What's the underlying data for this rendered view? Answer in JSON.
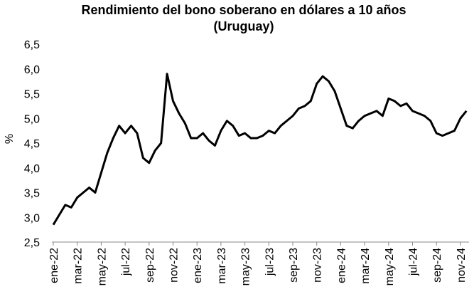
{
  "chart_data": {
    "type": "line",
    "title": "Rendimiento del bono soberano en dólares a 10 años",
    "subtitle": "(Uruguay)",
    "y_label": "%",
    "categories": [
      "ene-22",
      null,
      null,
      null,
      "mar-22",
      null,
      null,
      null,
      "may-22",
      null,
      null,
      null,
      "jul-22",
      null,
      null,
      null,
      "sep-22",
      null,
      null,
      null,
      "nov-22",
      null,
      null,
      null,
      "ene-23",
      null,
      null,
      null,
      "mar-23",
      null,
      null,
      null,
      "may-23",
      null,
      null,
      null,
      "jul-23",
      null,
      null,
      null,
      "sep-23",
      null,
      null,
      null,
      "nov-23",
      null,
      null,
      null,
      "ene-24",
      null,
      null,
      null,
      "mar-24",
      null,
      null,
      null,
      "may-24",
      null,
      null,
      null,
      "jul-24",
      null,
      null,
      null,
      "sep-24",
      null,
      null,
      null,
      "nov-24",
      null
    ],
    "series": [
      {
        "name": "Rendimiento",
        "color": "#000000",
        "values": [
          2.85,
          3.05,
          3.25,
          3.2,
          3.4,
          3.5,
          3.6,
          3.5,
          3.9,
          4.3,
          4.6,
          4.85,
          4.7,
          4.85,
          4.7,
          4.2,
          4.1,
          4.35,
          4.5,
          5.9,
          5.35,
          5.1,
          4.9,
          4.6,
          4.6,
          4.7,
          4.55,
          4.45,
          4.75,
          4.95,
          4.85,
          4.65,
          4.7,
          4.6,
          4.6,
          4.65,
          4.75,
          4.7,
          4.85,
          4.95,
          5.05,
          5.2,
          5.25,
          5.35,
          5.7,
          5.85,
          5.75,
          5.55,
          5.2,
          4.85,
          4.8,
          4.95,
          5.05,
          5.1,
          5.15,
          5.05,
          5.4,
          5.35,
          5.25,
          5.3,
          5.15,
          5.1,
          5.05,
          4.95,
          4.7,
          4.65,
          4.7,
          4.75,
          5.0,
          5.15
        ]
      }
    ],
    "ylim": [
      2.5,
      6.5
    ],
    "yticks": [
      {
        "value": 2.5,
        "label": "2,5"
      },
      {
        "value": 3.0,
        "label": "3,0"
      },
      {
        "value": 3.5,
        "label": "3,5"
      },
      {
        "value": 4.0,
        "label": "4,0"
      },
      {
        "value": 4.5,
        "label": "4,5"
      },
      {
        "value": 5.0,
        "label": "5,0"
      },
      {
        "value": 5.5,
        "label": "5,5"
      },
      {
        "value": 6.0,
        "label": "6,0"
      },
      {
        "value": 6.5,
        "label": "6,5"
      }
    ],
    "grid": false
  }
}
